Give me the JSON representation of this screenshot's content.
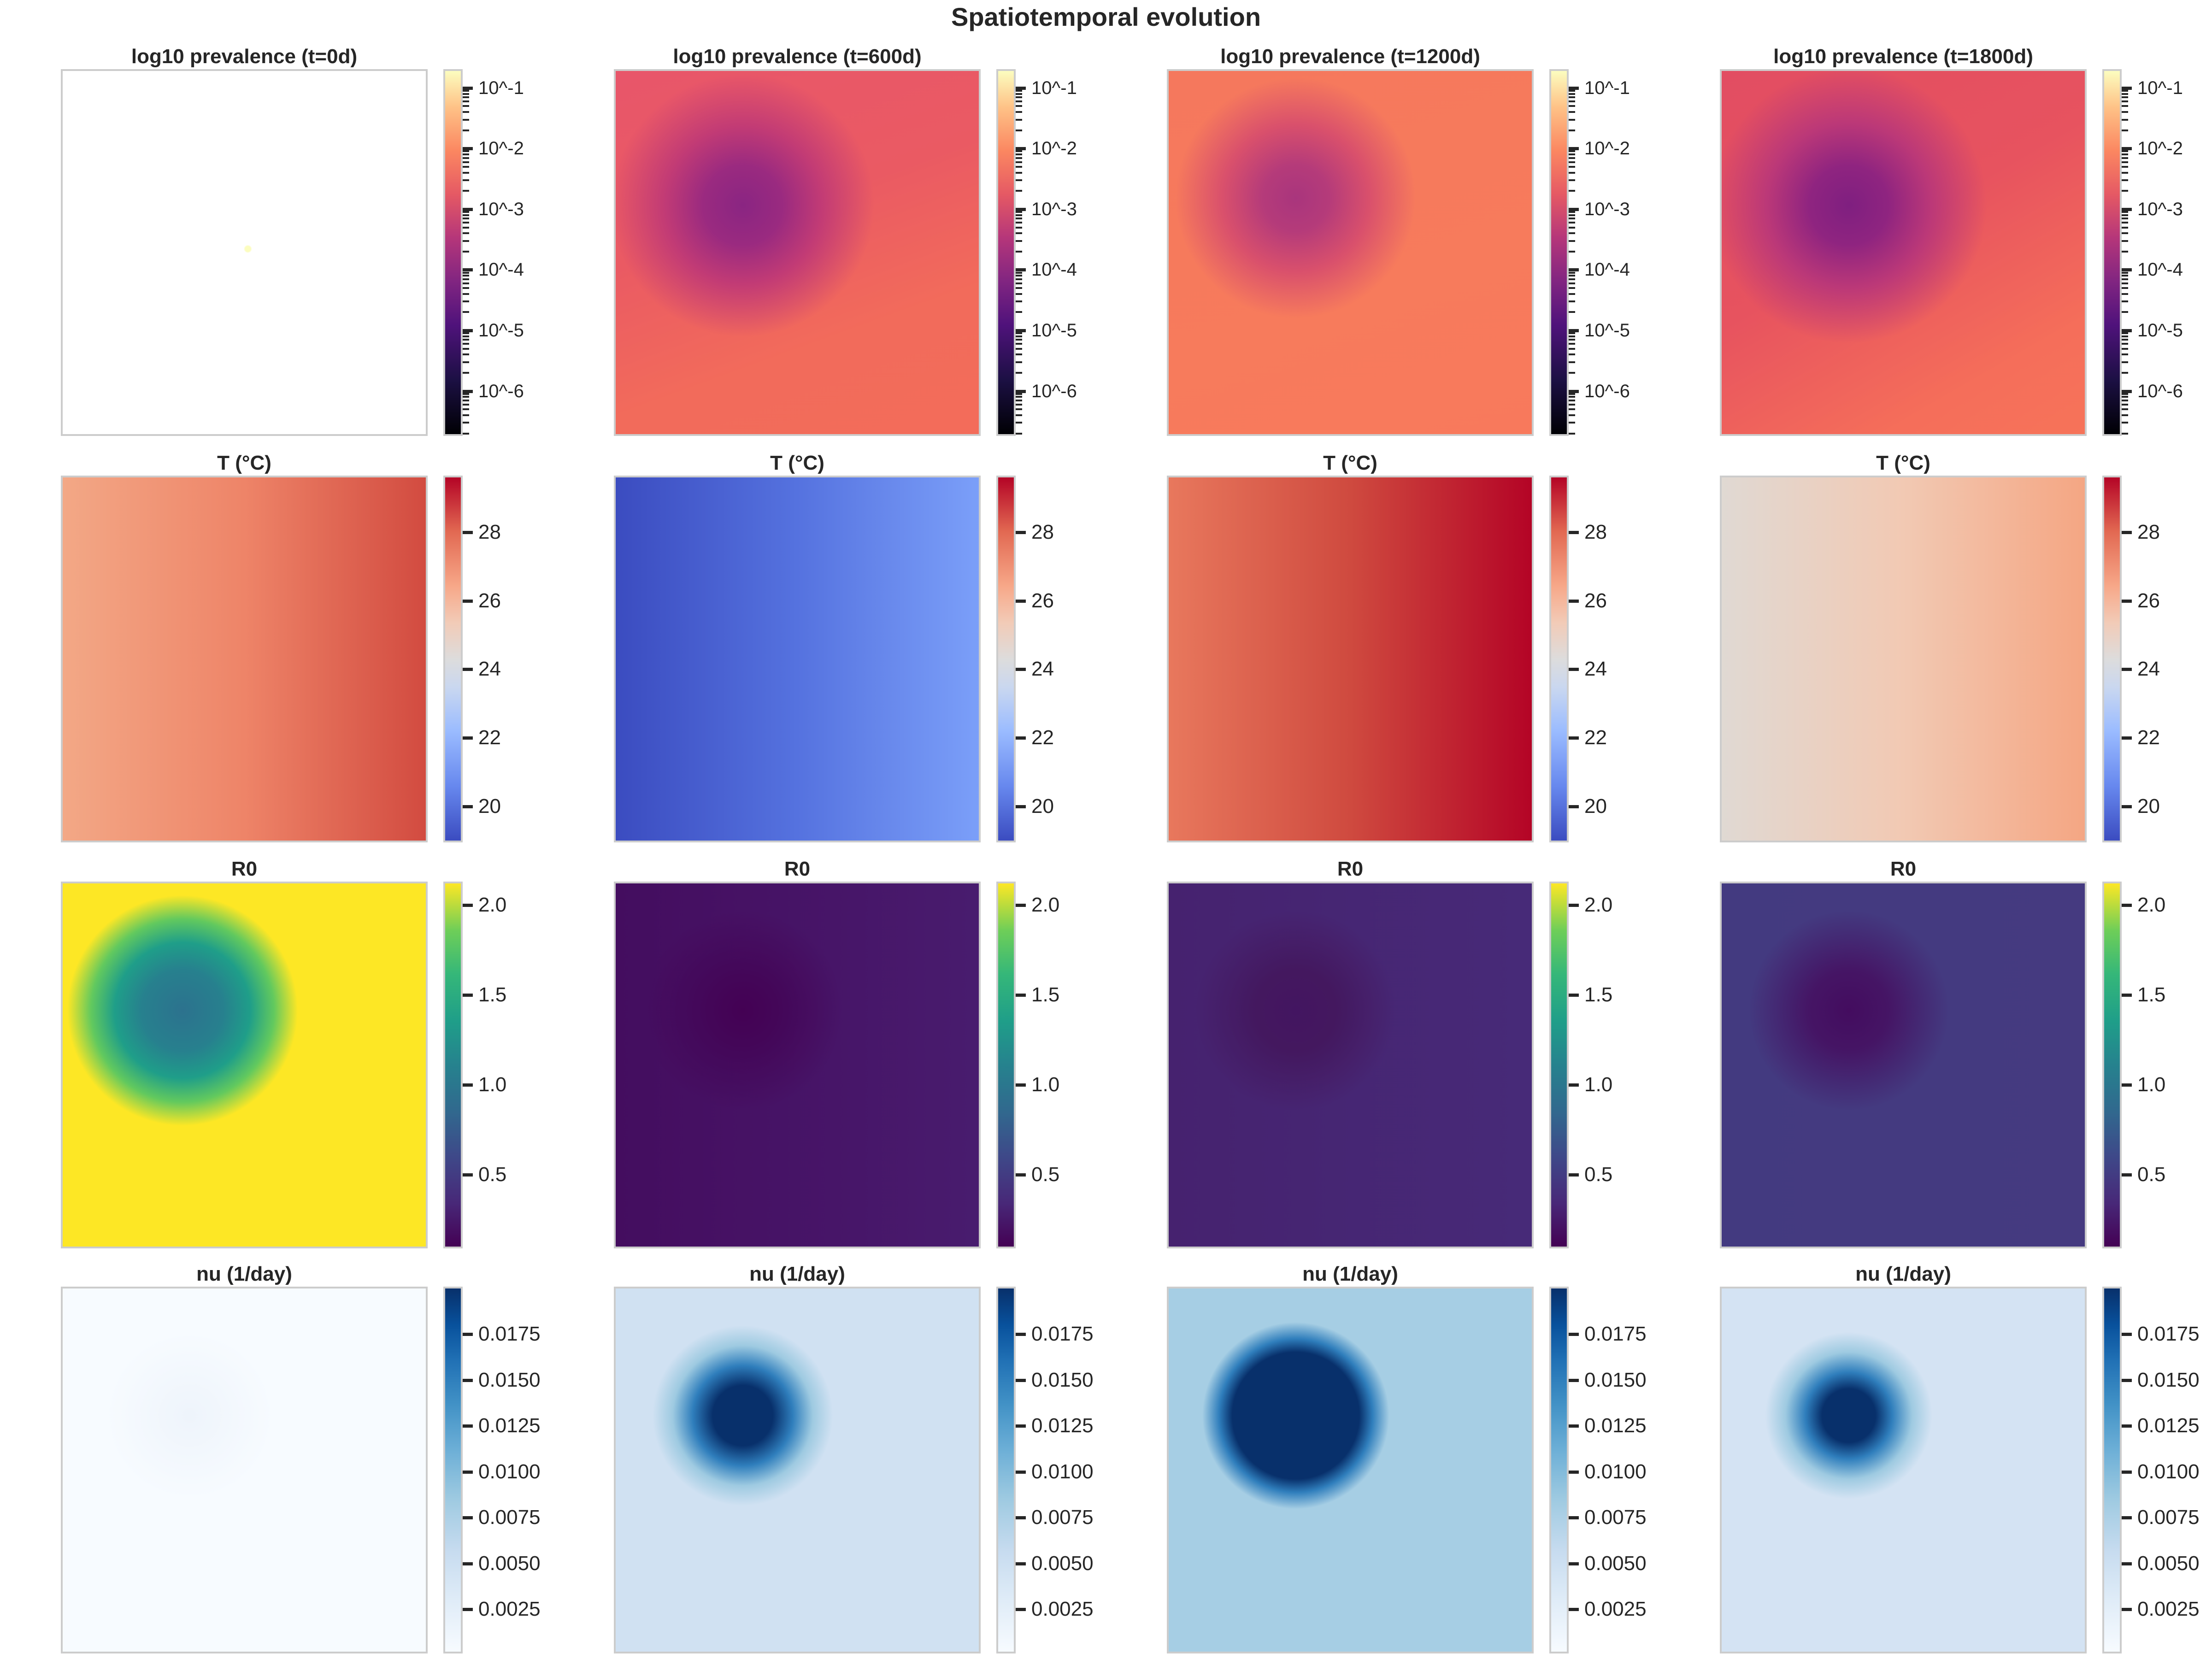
{
  "title": "Spatiotemporal evolution",
  "chart_data": {
    "type": "heatmap",
    "title": "Spatiotemporal evolution",
    "rows": [
      {
        "quantity": "prevalence",
        "colormap": "magma",
        "scale": "log",
        "colorbar_range_log10": [
          -6.71,
          -0.72
        ],
        "colorbar_ticks": [
          "10^-1",
          "10^-2",
          "10^-3",
          "10^-4",
          "10^-5",
          "10^-6"
        ],
        "tick_values_log10": [
          -1,
          -2,
          -3,
          -4,
          -5,
          -6
        ],
        "panels": [
          {
            "title": "log10 prevalence (t=0d)"
          },
          {
            "title": "log10 prevalence (t=600d)"
          },
          {
            "title": "log10 prevalence (t=1200d)"
          },
          {
            "title": "log10 prevalence (t=1800d)"
          }
        ]
      },
      {
        "quantity": "temperature",
        "colormap": "coolwarm",
        "scale": "linear",
        "colorbar_range": [
          19.0,
          29.6
        ],
        "colorbar_ticks": [
          "28",
          "26",
          "24",
          "22",
          "20"
        ],
        "tick_values": [
          28,
          26,
          24,
          22,
          20
        ],
        "panels": [
          {
            "title": "T (°C)"
          },
          {
            "title": "T (°C)"
          },
          {
            "title": "T (°C)"
          },
          {
            "title": "T (°C)"
          }
        ]
      },
      {
        "quantity": "R0",
        "colormap": "viridis",
        "scale": "linear",
        "colorbar_range": [
          0.1,
          2.12
        ],
        "colorbar_ticks": [
          "2.0",
          "1.5",
          "1.0",
          "0.5"
        ],
        "tick_values": [
          2.0,
          1.5,
          1.0,
          0.5
        ],
        "panels": [
          {
            "title": "R0"
          },
          {
            "title": "R0"
          },
          {
            "title": "R0"
          },
          {
            "title": "R0"
          }
        ]
      },
      {
        "quantity": "nu",
        "colormap": "Blues",
        "scale": "linear",
        "colorbar_range": [
          0.0002,
          0.02
        ],
        "colorbar_ticks": [
          "0.0175",
          "0.0150",
          "0.0125",
          "0.0100",
          "0.0075",
          "0.0050",
          "0.0025"
        ],
        "tick_values": [
          0.0175,
          0.015,
          0.0125,
          0.01,
          0.0075,
          0.005,
          0.0025
        ],
        "panels": [
          {
            "title": "nu (1/day)"
          },
          {
            "title": "nu (1/day)"
          },
          {
            "title": "nu (1/day)"
          },
          {
            "title": "nu (1/day)"
          }
        ]
      }
    ]
  }
}
